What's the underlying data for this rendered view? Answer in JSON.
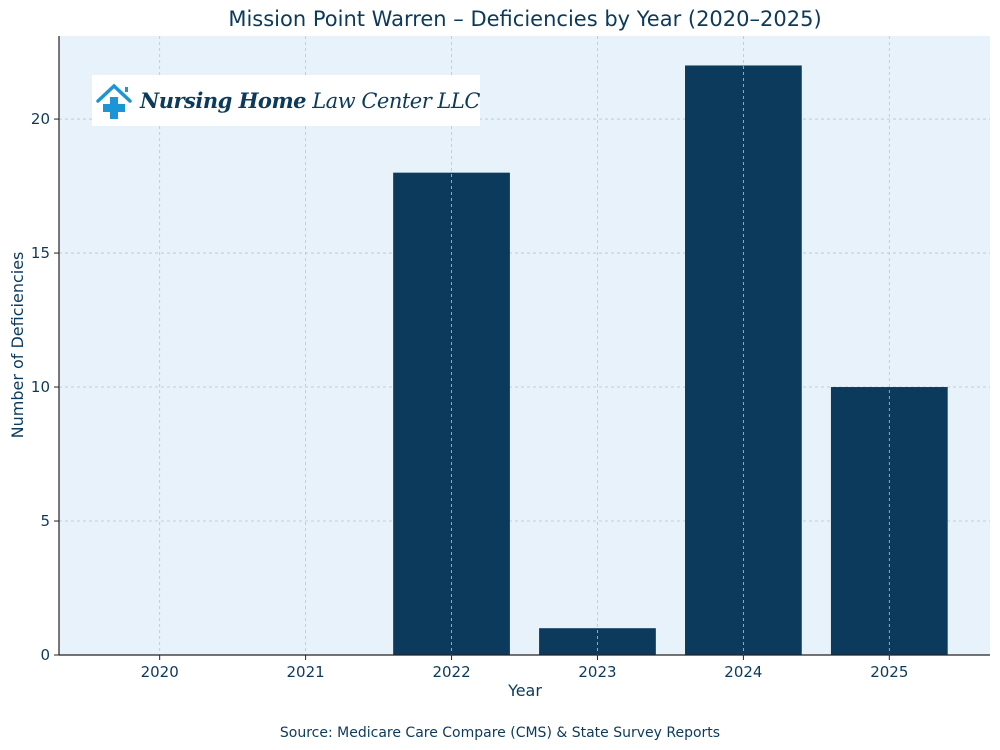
{
  "chart_data": {
    "type": "bar",
    "title": "Mission Point Warren – Deficiencies by Year (2020–2025)",
    "xlabel": "Year",
    "ylabel": "Number of Deficiencies",
    "categories": [
      "2020",
      "2021",
      "2022",
      "2023",
      "2024",
      "2025"
    ],
    "values": [
      0,
      0,
      18,
      1,
      22,
      10
    ],
    "ylim": [
      0,
      23.1
    ],
    "yticks": [
      0,
      5,
      10,
      15,
      20
    ],
    "grid": true,
    "colors": {
      "bar": "#0b3a5c",
      "plot_background": "#e8f2fa",
      "text": "#0b3a5c",
      "logo_icon": "#1b95d6"
    }
  },
  "source": "Source: Medicare Care Compare (CMS) & State Survey Reports",
  "logo": {
    "bold": "Nursing Home",
    "regular": "Law Center LLC",
    "icon": "house-cross-icon"
  }
}
